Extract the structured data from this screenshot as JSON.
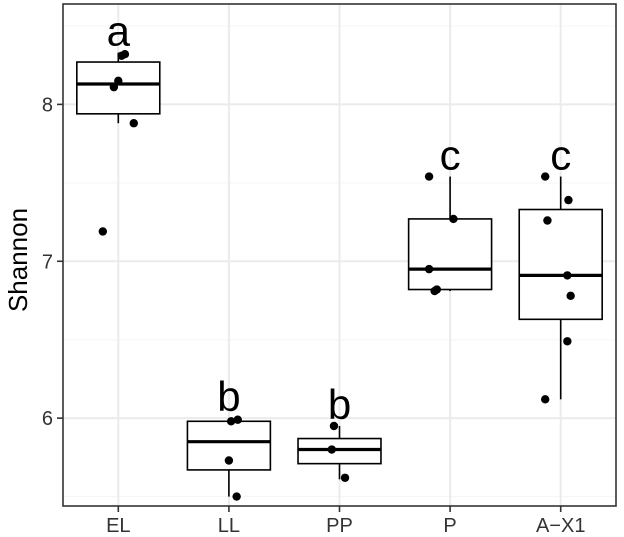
{
  "chart_data": {
    "type": "boxplot",
    "ylabel": "Shannon",
    "xlabel": "",
    "ylim": [
      5.44,
      8.64
    ],
    "yticks": [
      6,
      7,
      8
    ],
    "grid": true,
    "categories": [
      "EL",
      "LL",
      "PP",
      "P",
      "A−X1"
    ],
    "boxes": [
      {
        "name": "EL",
        "whisker_low": 7.88,
        "q1": 7.94,
        "median": 8.13,
        "q3": 8.27,
        "whisker_high": 8.33,
        "letter": "a",
        "points": [
          {
            "x": 0.96,
            "y": 8.11
          },
          {
            "x": 1.03,
            "y": 8.31
          },
          {
            "x": 1.06,
            "y": 8.32
          },
          {
            "x": 1.0,
            "y": 8.15
          },
          {
            "x": 1.14,
            "y": 7.88
          },
          {
            "x": 0.86,
            "y": 7.19
          }
        ]
      },
      {
        "name": "LL",
        "whisker_low": 5.5,
        "q1": 5.67,
        "median": 5.85,
        "q3": 5.98,
        "whisker_high": 6.0,
        "letter": "b",
        "points": [
          {
            "x": 2.02,
            "y": 5.98
          },
          {
            "x": 2.08,
            "y": 5.99
          },
          {
            "x": 2.0,
            "y": 5.73
          },
          {
            "x": 2.07,
            "y": 5.5
          }
        ]
      },
      {
        "name": "PP",
        "whisker_low": 5.61,
        "q1": 5.71,
        "median": 5.8,
        "q3": 5.87,
        "whisker_high": 5.95,
        "letter": "b",
        "points": [
          {
            "x": 2.95,
            "y": 5.95
          },
          {
            "x": 2.93,
            "y": 5.8
          },
          {
            "x": 3.05,
            "y": 5.62
          }
        ]
      },
      {
        "name": "P",
        "whisker_low": 6.81,
        "q1": 6.82,
        "median": 6.95,
        "q3": 7.27,
        "whisker_high": 7.54,
        "letter": "c",
        "points": [
          {
            "x": 3.81,
            "y": 7.54
          },
          {
            "x": 4.03,
            "y": 7.27
          },
          {
            "x": 3.81,
            "y": 6.95
          },
          {
            "x": 3.86,
            "y": 6.81
          },
          {
            "x": 3.88,
            "y": 6.82
          }
        ]
      },
      {
        "name": "A−X1",
        "whisker_low": 6.12,
        "q1": 6.63,
        "median": 6.91,
        "q3": 7.33,
        "whisker_high": 7.54,
        "letter": "c",
        "points": [
          {
            "x": 4.86,
            "y": 7.54
          },
          {
            "x": 5.07,
            "y": 7.39
          },
          {
            "x": 4.88,
            "y": 7.26
          },
          {
            "x": 5.06,
            "y": 6.91
          },
          {
            "x": 5.09,
            "y": 6.78
          },
          {
            "x": 5.06,
            "y": 6.49
          },
          {
            "x": 4.86,
            "y": 6.12
          }
        ]
      }
    ],
    "colors": {
      "panel_border": "#333333",
      "grid_major": "#ebebeb",
      "grid_minor": "#f5f5f5",
      "box_line": "#000000",
      "point": "#000000"
    }
  }
}
